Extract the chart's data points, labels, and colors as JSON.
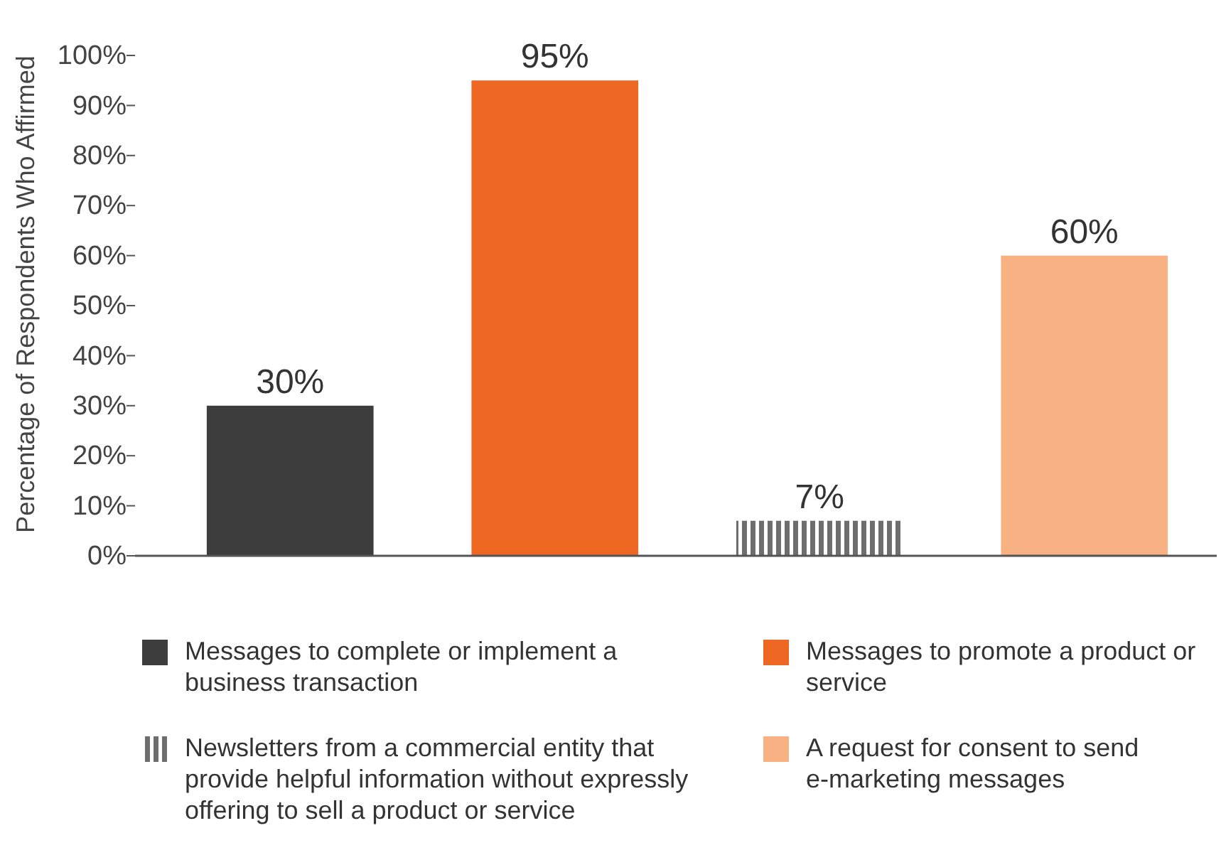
{
  "chart_data": {
    "type": "bar",
    "ylabel": "Percentage of Respondents Who Affirmed",
    "categories": [
      null,
      null,
      null,
      null
    ],
    "series": [
      {
        "name": "Messages to complete or implement a business transaction",
        "color": "#3d3d3d",
        "values": [
          30,
          null,
          null,
          null
        ],
        "value_labels": [
          "30%",
          null,
          null,
          null
        ]
      },
      {
        "name": "Messages to promote a product or service",
        "color": "#ee6723",
        "values": [
          null,
          95,
          null,
          null
        ],
        "value_labels": [
          null,
          "95%",
          null,
          null
        ]
      },
      {
        "name": "Newsletters from a commercial entity that provide helpful information without expressly offering to sell a product or service",
        "color": "#6e6e6e",
        "values": [
          null,
          null,
          7,
          null
        ],
        "value_labels": [
          null,
          null,
          "7%",
          null
        ]
      },
      {
        "name": "A request for consent to send e-marketing messages",
        "color": "#f8b183",
        "values": [
          null,
          null,
          null,
          60
        ],
        "value_labels": [
          null,
          null,
          null,
          "60%"
        ]
      }
    ],
    "ylim": [
      0,
      100
    ],
    "yticks": [
      {
        "value": 0,
        "label": "0%"
      },
      {
        "value": 10,
        "label": "10%"
      },
      {
        "value": 20,
        "label": "20%"
      },
      {
        "value": 30,
        "label": "30%"
      },
      {
        "value": 40,
        "label": "40%"
      },
      {
        "value": 50,
        "label": "50%"
      },
      {
        "value": 60,
        "label": "60%"
      },
      {
        "value": 70,
        "label": "70%"
      },
      {
        "value": 80,
        "label": "80%"
      },
      {
        "value": 90,
        "label": "90%"
      },
      {
        "value": 100,
        "label": "100%"
      }
    ],
    "legend": "bottom",
    "grid": false
  }
}
